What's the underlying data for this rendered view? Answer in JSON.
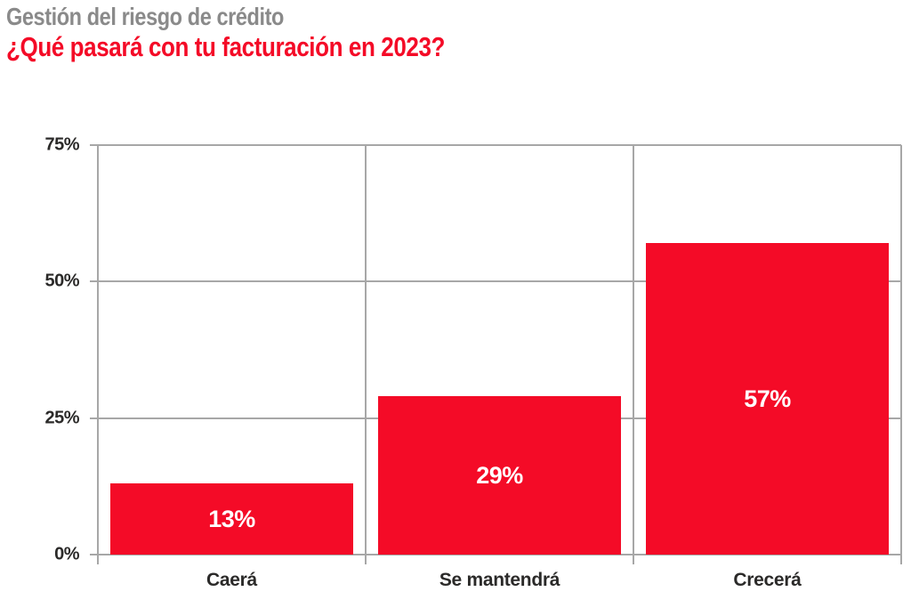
{
  "header": {
    "title": "Gestión del riesgo de crédito",
    "subtitle": "¿Qué pasará con tu facturación en 2023?"
  },
  "colors": {
    "accent_red": "#f40b27",
    "title_gray": "#8a8a8a",
    "text_dark": "#2b2a29",
    "grid_gray": "#a7a7a7",
    "bar_label_white": "#ffffff"
  },
  "chart_data": {
    "type": "bar",
    "title": "Gestión del riesgo de crédito",
    "subtitle": "¿Qué pasará con tu facturación en 2023?",
    "categories": [
      "Caerá",
      "Se mantendrá",
      "Crecerá"
    ],
    "values": [
      13,
      29,
      57
    ],
    "value_labels": [
      "13%",
      "29%",
      "57%"
    ],
    "y_ticks": [
      "0%",
      "25%",
      "50%",
      "75%"
    ],
    "y_tick_values": [
      0,
      25,
      50,
      75
    ],
    "ylim": [
      0,
      75
    ],
    "xlabel": "",
    "ylabel": "",
    "grid": true,
    "legend": "none",
    "bar_color": "#f40b27",
    "value_label_position": "center-inside"
  }
}
